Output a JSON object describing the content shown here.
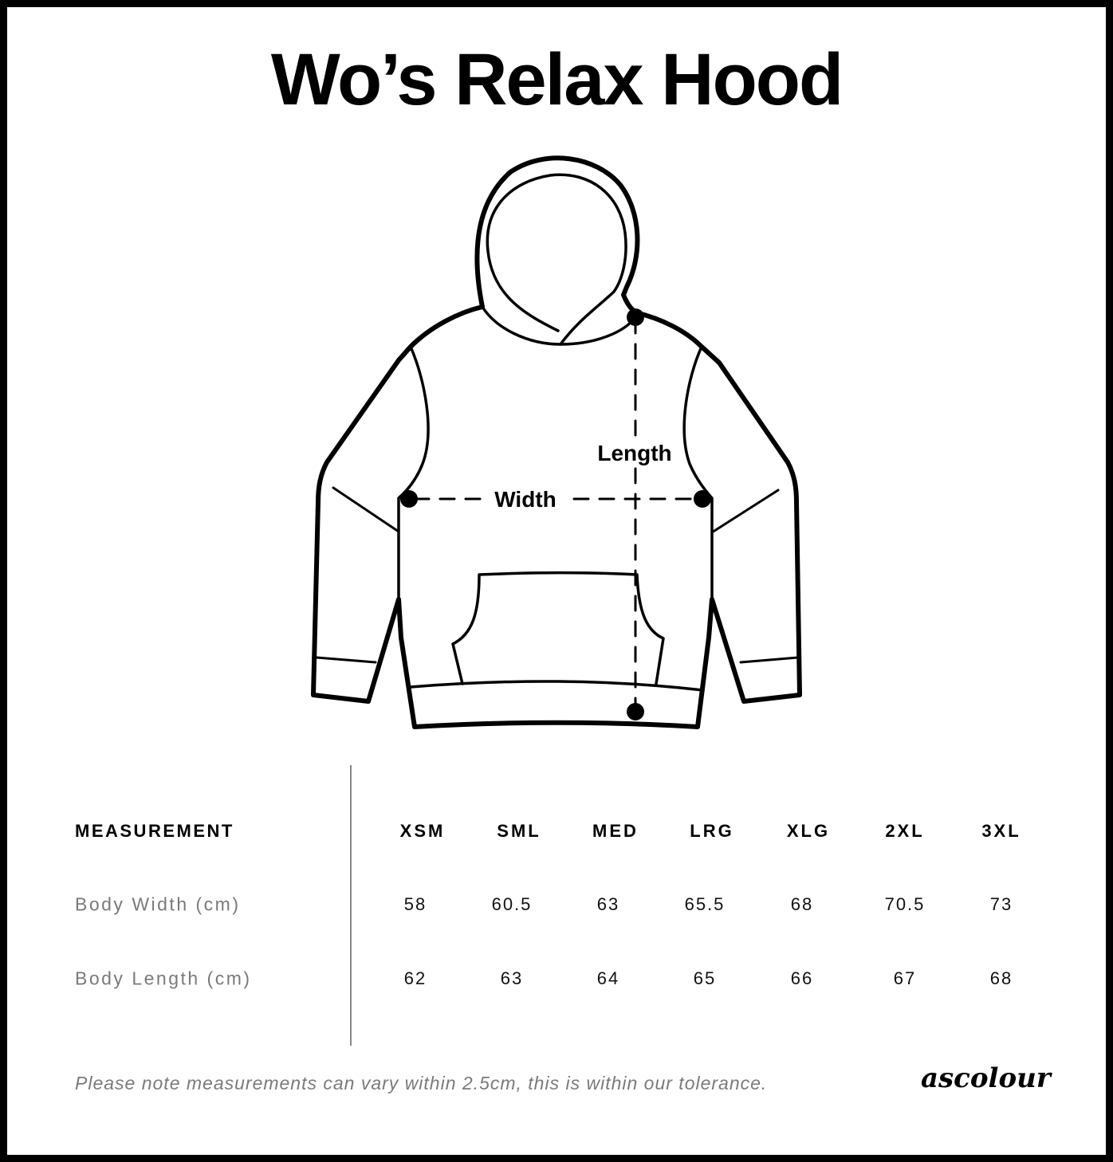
{
  "title": "Wo’s Relax Hood",
  "diagram": {
    "width_label": "Width",
    "length_label": "Length"
  },
  "table": {
    "header_label": "MEASUREMENT",
    "sizes": [
      "XSM",
      "SML",
      "MED",
      "LRG",
      "XLG",
      "2XL",
      "3XL"
    ],
    "rows": [
      {
        "label": "Body Width (cm)",
        "values": [
          "58",
          "60.5",
          "63",
          "65.5",
          "68",
          "70.5",
          "73"
        ]
      },
      {
        "label": "Body Length (cm)",
        "values": [
          "62",
          "63",
          "64",
          "65",
          "66",
          "67",
          "68"
        ]
      }
    ]
  },
  "footer": {
    "note": "Please note measurements can vary within 2.5cm, this is within our tolerance.",
    "logo": "ascolour"
  }
}
